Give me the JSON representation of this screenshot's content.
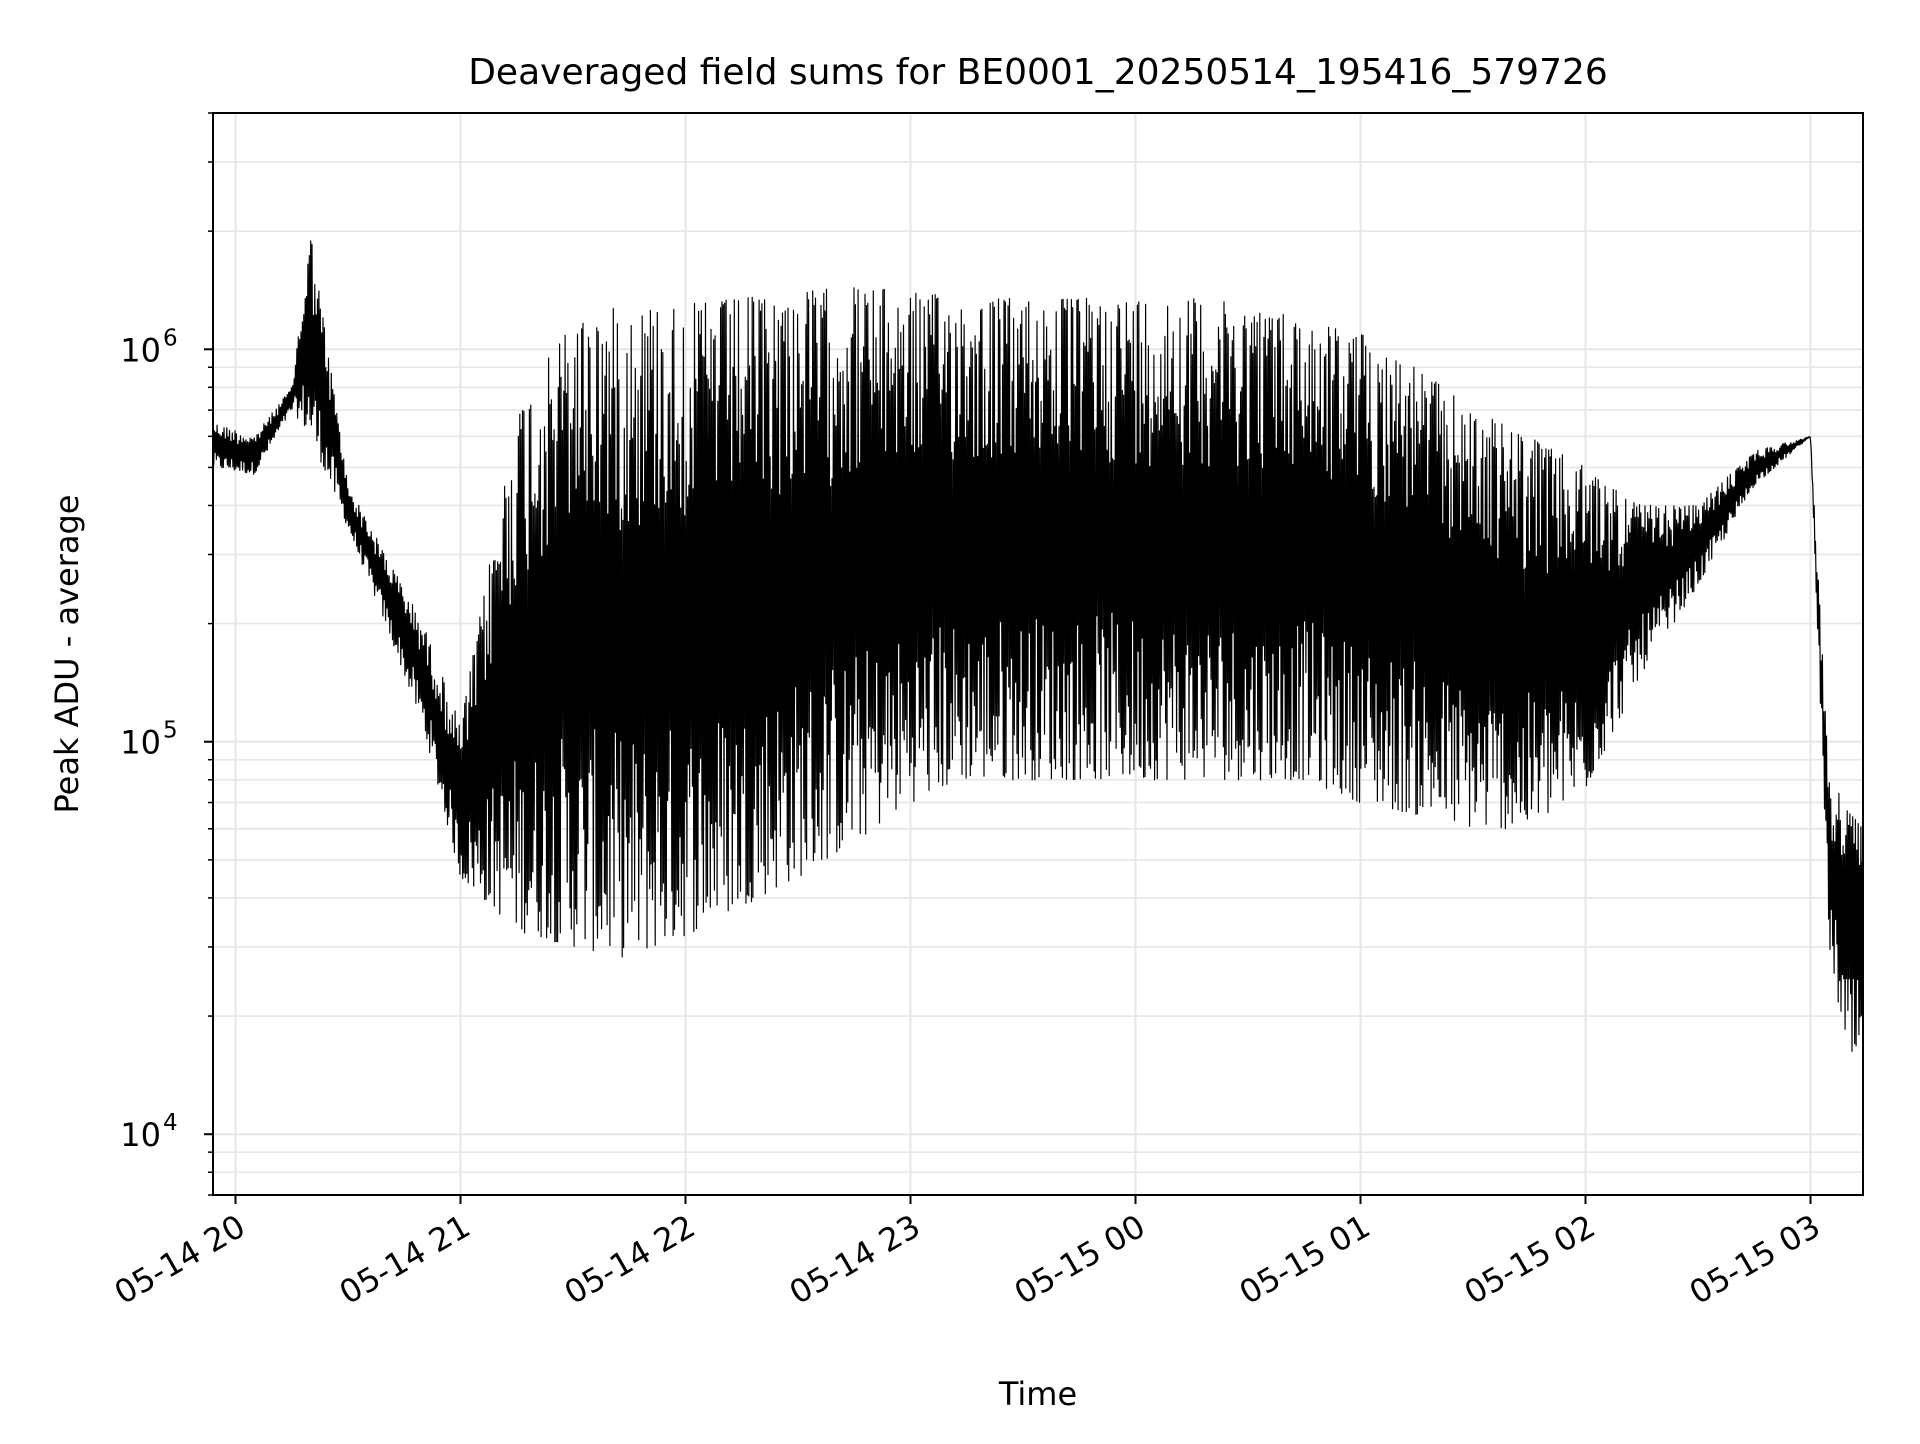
{
  "chart_data": {
    "type": "line",
    "title": "Deaveraged field sums for BE0001_20250514_195416_579726",
    "xlabel": "Time",
    "ylabel": "Peak ADU - average",
    "yscale": "log",
    "ylim": [
      7000,
      4000000
    ],
    "xlim": [
      "2025-05-14 19:54",
      "2025-05-15 03:14"
    ],
    "grid": true,
    "line_color": "#000000",
    "grid_color": "#e6e6e6",
    "x_ticks": [
      {
        "value": "2025-05-14 20:00",
        "label": "05-14 20"
      },
      {
        "value": "2025-05-14 21:00",
        "label": "05-14 21"
      },
      {
        "value": "2025-05-14 22:00",
        "label": "05-14 22"
      },
      {
        "value": "2025-05-14 23:00",
        "label": "05-14 23"
      },
      {
        "value": "2025-05-15 00:00",
        "label": "05-15 00"
      },
      {
        "value": "2025-05-15 01:00",
        "label": "05-15 01"
      },
      {
        "value": "2025-05-15 02:00",
        "label": "05-15 02"
      },
      {
        "value": "2025-05-15 03:00",
        "label": "05-15 03"
      }
    ],
    "y_ticks": [
      {
        "value": 10000,
        "base": "10",
        "exp": "4"
      },
      {
        "value": 100000,
        "base": "10",
        "exp": "5"
      },
      {
        "value": 1000000,
        "base": "10",
        "exp": "6"
      }
    ],
    "series": [
      {
        "style": "dense sawtooth line; approximate envelope read from the chart (upper and lower bounds of the oscillating signal)",
        "x": [
          "2025-05-14 19:54",
          "2025-05-14 20:05",
          "2025-05-14 20:15",
          "2025-05-14 20:20",
          "2025-05-14 20:30",
          "2025-05-14 20:40",
          "2025-05-14 20:50",
          "2025-05-14 21:00",
          "2025-05-14 21:15",
          "2025-05-14 21:30",
          "2025-05-14 21:45",
          "2025-05-14 22:00",
          "2025-05-14 22:15",
          "2025-05-14 22:30",
          "2025-05-14 22:45",
          "2025-05-14 23:00",
          "2025-05-14 23:15",
          "2025-05-14 23:30",
          "2025-05-14 23:45",
          "2025-05-15 00:00",
          "2025-05-15 00:15",
          "2025-05-15 00:30",
          "2025-05-15 00:45",
          "2025-05-15 01:00",
          "2025-05-15 01:15",
          "2025-05-15 01:30",
          "2025-05-15 01:45",
          "2025-05-15 02:00",
          "2025-05-15 02:15",
          "2025-05-15 02:30",
          "2025-05-15 02:45",
          "2025-05-15 03:00",
          "2025-05-15 03:05",
          "2025-05-15 03:10",
          "2025-05-15 03:14"
        ],
        "upper": [
          650000,
          600000,
          800000,
          2000000,
          450000,
          300000,
          200000,
          110000,
          700000,
          1200000,
          1300000,
          1300000,
          1350000,
          1400000,
          1450000,
          1400000,
          1350000,
          1350000,
          1350000,
          1350000,
          1350000,
          1300000,
          1200000,
          1100000,
          900000,
          700000,
          600000,
          500000,
          400000,
          400000,
          550000,
          600000,
          80000,
          70000,
          60000
        ],
        "lower": [
          500000,
          480000,
          700000,
          600000,
          350000,
          200000,
          110000,
          45000,
          33000,
          30000,
          28000,
          32000,
          38000,
          45000,
          55000,
          70000,
          80000,
          80000,
          80000,
          80000,
          80000,
          80000,
          80000,
          70000,
          65000,
          60000,
          60000,
          75000,
          150000,
          250000,
          450000,
          600000,
          30000,
          15000,
          15000
        ]
      }
    ]
  }
}
